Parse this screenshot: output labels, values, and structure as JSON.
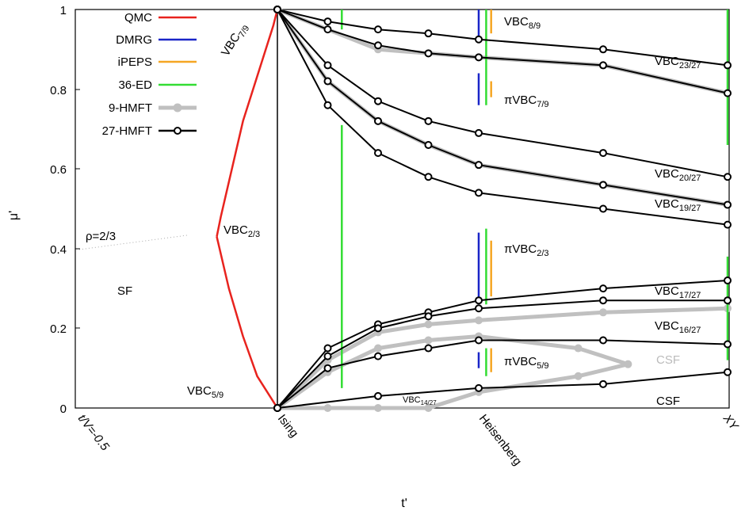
{
  "chart_data": {
    "type": "line",
    "xlabel": "t'",
    "ylabel": "μ'",
    "ylim": [
      0,
      1
    ],
    "yticks": [
      "0",
      "0.2",
      "0.4",
      "0.6",
      "0.8",
      "1"
    ],
    "xtick_labels": [
      "t/V=-0.5",
      "Ising",
      "Heisenberg",
      "XY"
    ],
    "x_scale": "piecewise: t/V=-0.5 → Ising → Heisenberg → XY",
    "legend_position": "top-left",
    "legend": [
      {
        "name": "QMC",
        "color": "#e8231e",
        "style": "line"
      },
      {
        "name": "DMRG",
        "color": "#1a26c8",
        "style": "line"
      },
      {
        "name": "iPEPS",
        "color": "#f5a623",
        "style": "line"
      },
      {
        "name": "36-ED",
        "color": "#33dd33",
        "style": "line"
      },
      {
        "name": "9-HMFT",
        "color": "#c0c0c0",
        "style": "thick-line-points"
      },
      {
        "name": "27-HMFT",
        "color": "#000000",
        "style": "line-points"
      }
    ],
    "phase_labels": [
      {
        "text": "SF"
      },
      {
        "text": "ρ=2/3"
      },
      {
        "base": "VBC",
        "sub": "7/9"
      },
      {
        "base": "VBC",
        "sub": "2/3"
      },
      {
        "base": "VBC",
        "sub": "5/9"
      },
      {
        "base": "VBC",
        "sub": "8/9"
      },
      {
        "base": "VBC",
        "sub": "23/27"
      },
      {
        "base": "πVBC",
        "sub": "7/9"
      },
      {
        "base": "VBC",
        "sub": "20/27"
      },
      {
        "base": "VBC",
        "sub": "19/27"
      },
      {
        "base": "πVBC",
        "sub": "2/3"
      },
      {
        "base": "VBC",
        "sub": "17/27"
      },
      {
        "base": "VBC",
        "sub": "16/27"
      },
      {
        "base": "πVBC",
        "sub": "5/9"
      },
      {
        "text": "CSF"
      },
      {
        "text": "CSF"
      },
      {
        "base": "VBC",
        "sub": "14/27"
      }
    ],
    "series": [
      {
        "name": "QMC",
        "color": "#e8231e",
        "points": [
          [
            -0.3,
            0.43
          ],
          [
            -0.28,
            0.48
          ],
          [
            -0.17,
            0.72
          ],
          [
            -0.02,
            0.96
          ],
          [
            0,
            1
          ]
        ],
        "points_lower": [
          [
            -0.3,
            0.43
          ],
          [
            -0.24,
            0.3
          ],
          [
            -0.17,
            0.18
          ],
          [
            -0.1,
            0.08
          ],
          [
            0,
            0
          ]
        ]
      },
      {
        "name": "DMRG",
        "color": "#1a26c8",
        "segments": [
          [
            2,
            0.92,
            1.0
          ],
          [
            2,
            0.76,
            0.84
          ],
          [
            2,
            0.27,
            0.44
          ],
          [
            2,
            0.1,
            0.14
          ]
        ]
      },
      {
        "name": "iPEPS",
        "color": "#f5a623",
        "segments": [
          [
            2.05,
            0.94,
            1.0
          ],
          [
            2.05,
            0.78,
            0.82
          ],
          [
            2.05,
            0.28,
            0.42
          ],
          [
            2.05,
            0.09,
            0.15
          ]
        ]
      },
      {
        "name": "36-ED",
        "color": "#33dd33",
        "segments": [
          [
            2.03,
            0.76,
            1.0
          ],
          [
            2.03,
            0.26,
            0.45
          ],
          [
            2.03,
            0.08,
            0.15
          ],
          [
            0.64,
            0.05,
            0.71
          ],
          [
            0.64,
            0.95,
            1.0
          ],
          [
            3.0,
            0.66,
            1.0
          ],
          [
            3.0,
            0.12,
            0.38
          ]
        ]
      },
      {
        "name": "27-HMFT",
        "color": "#000000",
        "curves": [
          [
            [
              0,
              1
            ],
            [
              0.5,
              0.97
            ],
            [
              1,
              0.95
            ],
            [
              1.5,
              0.94
            ],
            [
              2,
              0.925
            ],
            [
              2.5,
              0.9
            ],
            [
              3,
              0.86
            ]
          ],
          [
            [
              0,
              1
            ],
            [
              0.5,
              0.95
            ],
            [
              1,
              0.91
            ],
            [
              1.5,
              0.89
            ],
            [
              2,
              0.88
            ],
            [
              2.5,
              0.86
            ],
            [
              3,
              0.79
            ]
          ],
          [
            [
              0,
              1
            ],
            [
              0.5,
              0.86
            ],
            [
              1,
              0.77
            ],
            [
              1.5,
              0.72
            ],
            [
              2,
              0.69
            ],
            [
              2.5,
              0.64
            ],
            [
              3,
              0.58
            ]
          ],
          [
            [
              0,
              1
            ],
            [
              0.5,
              0.82
            ],
            [
              1,
              0.72
            ],
            [
              1.5,
              0.66
            ],
            [
              2,
              0.61
            ],
            [
              2.5,
              0.56
            ],
            [
              3,
              0.51
            ]
          ],
          [
            [
              0,
              1
            ],
            [
              0.5,
              0.76
            ],
            [
              1,
              0.64
            ],
            [
              1.5,
              0.58
            ],
            [
              2,
              0.54
            ],
            [
              2.5,
              0.5
            ],
            [
              3,
              0.46
            ]
          ],
          [
            [
              0,
              0
            ],
            [
              0.5,
              0.15
            ],
            [
              1,
              0.21
            ],
            [
              1.5,
              0.24
            ],
            [
              2,
              0.27
            ],
            [
              2.5,
              0.3
            ],
            [
              3,
              0.32
            ]
          ],
          [
            [
              0,
              0
            ],
            [
              0.5,
              0.13
            ],
            [
              1,
              0.2
            ],
            [
              1.5,
              0.23
            ],
            [
              2,
              0.25
            ],
            [
              2.5,
              0.27
            ],
            [
              3,
              0.27
            ]
          ],
          [
            [
              0,
              0
            ],
            [
              0.5,
              0.1
            ],
            [
              1,
              0.13
            ],
            [
              1.5,
              0.15
            ],
            [
              2,
              0.17
            ],
            [
              2.5,
              0.17
            ],
            [
              3,
              0.16
            ]
          ],
          [
            [
              0,
              0
            ],
            [
              1,
              0.03
            ],
            [
              2,
              0.05
            ],
            [
              2.5,
              0.06
            ],
            [
              3,
              0.09
            ]
          ]
        ]
      },
      {
        "name": "9-HMFT",
        "color": "#c0c0c0",
        "curves": [
          [
            [
              0,
              1
            ],
            [
              0.5,
              0.95
            ],
            [
              1,
              0.9
            ],
            [
              1.5,
              0.89
            ],
            [
              2,
              0.88
            ],
            [
              2.5,
              0.86
            ],
            [
              3,
              0.79
            ]
          ],
          [
            [
              0,
              1
            ],
            [
              0.5,
              0.82
            ],
            [
              1,
              0.72
            ],
            [
              1.5,
              0.66
            ],
            [
              2,
              0.61
            ],
            [
              2.5,
              0.56
            ],
            [
              3,
              0.51
            ]
          ],
          [
            [
              0,
              0
            ],
            [
              0.5,
              0.12
            ],
            [
              1,
              0.19
            ],
            [
              1.5,
              0.21
            ],
            [
              2,
              0.22
            ],
            [
              2.5,
              0.24
            ],
            [
              3,
              0.25
            ]
          ],
          [
            [
              0,
              0
            ],
            [
              0.5,
              0.09
            ],
            [
              1,
              0.15
            ],
            [
              1.5,
              0.17
            ],
            [
              2,
              0.18
            ],
            [
              2.4,
              0.15
            ],
            [
              2.6,
              0.11
            ],
            [
              2.4,
              0.08
            ],
            [
              2,
              0.04
            ],
            [
              1.5,
              0
            ],
            [
              1,
              0
            ],
            [
              0.5,
              0
            ],
            [
              0,
              0
            ]
          ]
        ]
      }
    ]
  }
}
